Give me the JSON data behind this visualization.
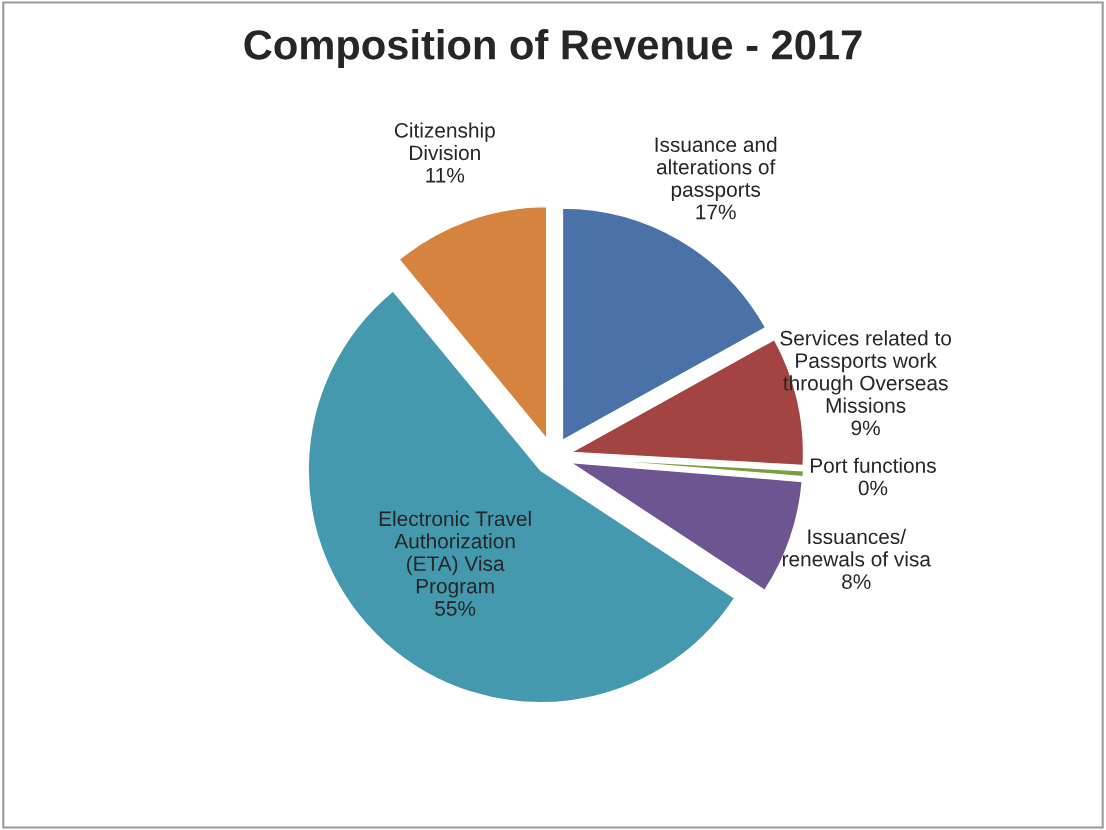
{
  "chart_data": {
    "type": "pie",
    "title": "Composition of Revenue - 2017",
    "categories": [
      "Issuance and\nalterations of\npassports",
      "Services related to\nPassports work\nthrough Overseas\nMissions",
      "Port functions",
      "Issuances/\nrenewals of visa",
      "Electronic Travel\nAuthorization\n(ETA) Visa\nProgram",
      "Citizenship\nDivision"
    ],
    "values": [
      17,
      9,
      0.4,
      8,
      55,
      11
    ],
    "value_labels": [
      "17%",
      "9%",
      "0%",
      "8%",
      "55%",
      "11%"
    ],
    "colors": [
      "#4a72a8",
      "#a44442",
      "#78a040",
      "#6d5591",
      "#4599ae",
      "#d5833f"
    ],
    "legend": false
  }
}
